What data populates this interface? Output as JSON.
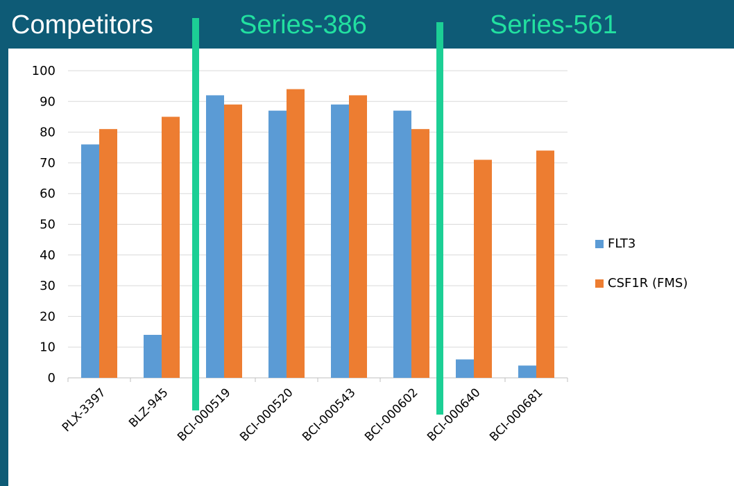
{
  "headers": {
    "competitors": "Competitors",
    "series_386": "Series-386",
    "series_561": "Series-561"
  },
  "colors": {
    "flt3": "#5b9bd5",
    "csf1r": "#ed7d31",
    "divider": "#1ccf95",
    "background": "#0e5b76"
  },
  "chart_data": {
    "type": "bar",
    "categories": [
      "PLX-3397",
      "BLZ-945",
      "BCI-000519",
      "BCI-000520",
      "BCI-000543",
      "BCI-000602",
      "BCI-000640",
      "BCI-000681"
    ],
    "series": [
      {
        "name": "FLT3",
        "values": [
          76,
          14,
          92,
          87,
          89,
          87,
          6,
          4
        ]
      },
      {
        "name": "CSF1R (FMS)",
        "values": [
          81,
          85,
          89,
          94,
          92,
          81,
          71,
          74
        ]
      }
    ],
    "yticks": [
      0,
      10,
      20,
      30,
      40,
      50,
      60,
      70,
      80,
      90,
      100
    ],
    "ylim": [
      0,
      100
    ],
    "grid": true,
    "legend": "right",
    "title": "",
    "xlabel": "",
    "ylabel": ""
  }
}
